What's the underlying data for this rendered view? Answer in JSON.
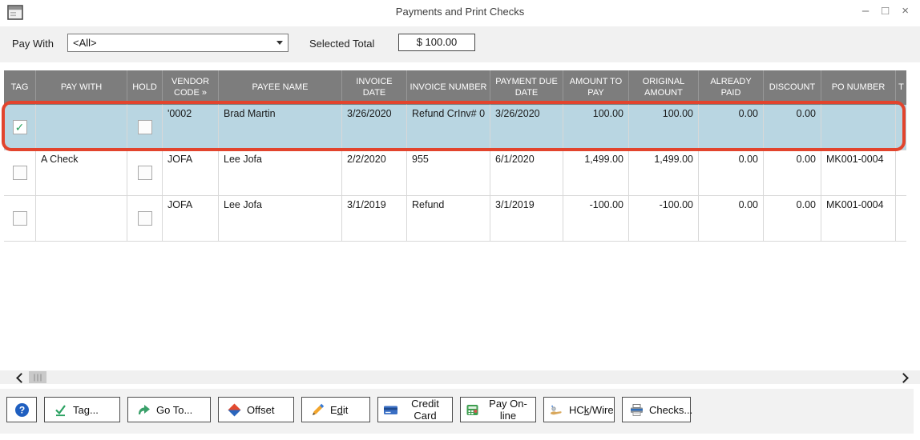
{
  "window": {
    "title": "Payments and Print Checks",
    "minimize_glyph": "–",
    "maximize_glyph": "□",
    "close_glyph": "×"
  },
  "toolbar": {
    "pay_with_label": "Pay With",
    "pay_with_value": "<All>",
    "selected_total_label": "Selected Total",
    "selected_total_value": "$ 100.00"
  },
  "table": {
    "columns": [
      "TAG",
      "PAY WITH",
      "HOLD",
      "VENDOR CODE »",
      "PAYEE NAME",
      "INVOICE DATE",
      "INVOICE NUMBER",
      "PAYMENT DUE DATE",
      "AMOUNT TO PAY",
      "ORIGINAL AMOUNT",
      "ALREADY PAID",
      "DISCOUNT",
      "PO NUMBER",
      "T"
    ],
    "rows": [
      {
        "tag": true,
        "pay_with": "",
        "hold": false,
        "vendor_code": "'0002",
        "payee_name": "Brad Martin",
        "invoice_date": "3/26/2020",
        "invoice_number": "Refund CrInv# 0",
        "payment_due_date": "3/26/2020",
        "amount_to_pay": "100.00",
        "original_amount": "100.00",
        "already_paid": "0.00",
        "discount": "0.00",
        "po_number": "",
        "extra": "",
        "highlighted": true
      },
      {
        "tag": false,
        "pay_with": "A Check",
        "hold": false,
        "vendor_code": "JOFA",
        "payee_name": "Lee Jofa",
        "invoice_date": "2/2/2020",
        "invoice_number": "955",
        "payment_due_date": "6/1/2020",
        "amount_to_pay": "1,499.00",
        "original_amount": "1,499.00",
        "already_paid": "0.00",
        "discount": "0.00",
        "po_number": "MK001-0004",
        "extra": "",
        "highlighted": false
      },
      {
        "tag": false,
        "pay_with": "",
        "hold": false,
        "vendor_code": "JOFA",
        "payee_name": "Lee Jofa",
        "invoice_date": "3/1/2019",
        "invoice_number": "Refund",
        "payment_due_date": "3/1/2019",
        "amount_to_pay": "-100.00",
        "original_amount": "-100.00",
        "already_paid": "0.00",
        "discount": "0.00",
        "po_number": "MK001-0004",
        "extra": "",
        "highlighted": false
      }
    ]
  },
  "buttons": [
    {
      "id": "help",
      "icon": "help-icon",
      "label": "",
      "underline_index": null
    },
    {
      "id": "tag",
      "icon": "tag-check-icon",
      "label": "Tag...",
      "underline_index": 2
    },
    {
      "id": "go-to",
      "icon": "go-to-arrow-icon",
      "label": "Go To...",
      "underline_index": null
    },
    {
      "id": "offset",
      "icon": "offset-diamond-icon",
      "label": "Offset",
      "underline_index": null
    },
    {
      "id": "edit",
      "icon": "edit-pencil-icon",
      "label": "Edit",
      "underline_index": 1
    },
    {
      "id": "credit-card",
      "icon": "credit-card-icon",
      "label": "Credit Card",
      "underline_index": null
    },
    {
      "id": "pay-online",
      "icon": "pay-online-icon",
      "label": "Pay On-line",
      "underline_index": null
    },
    {
      "id": "hck-wire",
      "icon": "hand-wire-icon",
      "label": "HCk/Wire",
      "underline_index": 2
    },
    {
      "id": "checks",
      "icon": "printer-icon",
      "label": "Checks...",
      "underline_index": null
    }
  ],
  "colors": {
    "header_bg": "#7d7d7d",
    "selected_row_bg": "#b9d6e2",
    "annotation_ring": "#e2442d",
    "help_blue": "#1f5fc0"
  }
}
